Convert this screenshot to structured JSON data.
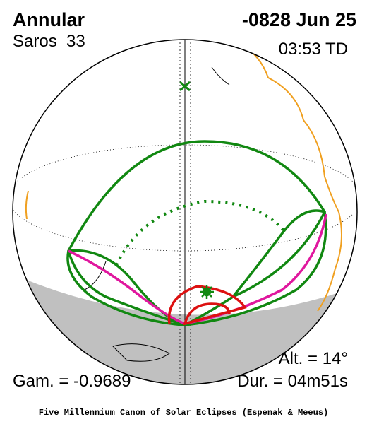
{
  "header": {
    "title": "Annular",
    "saros": "Saros  33",
    "date": "-0828 Jun 25",
    "time": "03:53 TD"
  },
  "stats": {
    "altitude": "Alt. = 14°",
    "gamma": "Gam. = -0.9689",
    "duration": "Dur. = 04m51s"
  },
  "footer": "Five Millennium Canon of Solar Eclipses (Espenak & Meeus)"
}
